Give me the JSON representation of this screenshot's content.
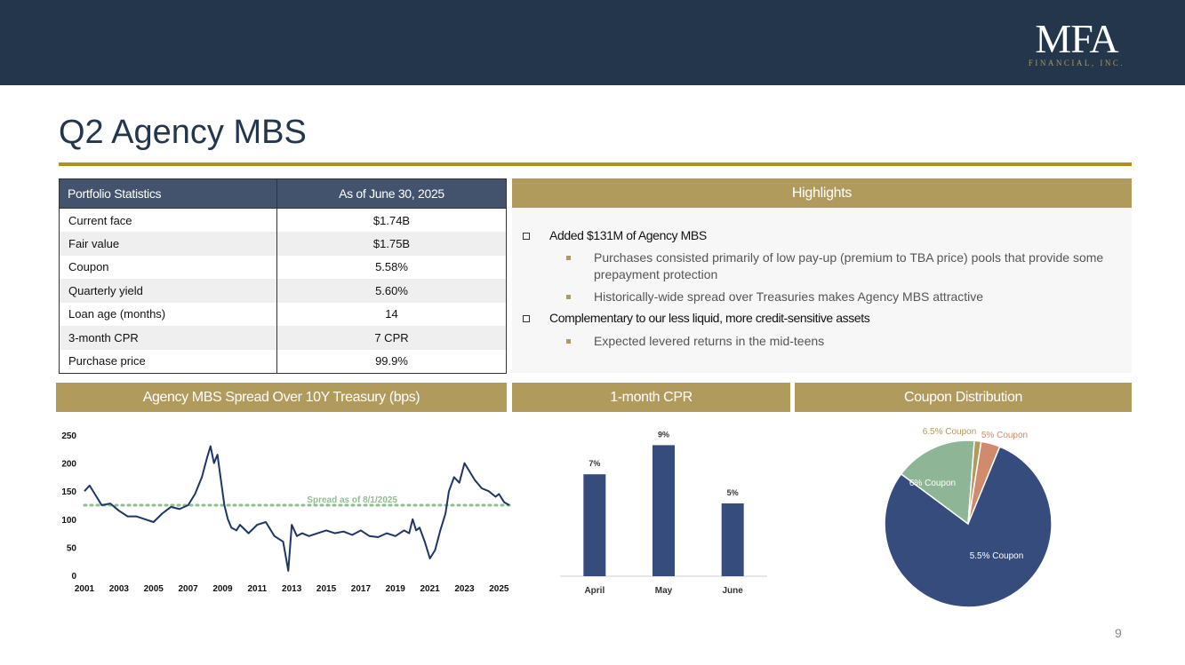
{
  "header": {
    "logo_main": "MFA",
    "logo_sub": "FINANCIAL, INC."
  },
  "title": "Q2 Agency MBS",
  "stats": {
    "col1": "Portfolio Statistics",
    "col2": "As of June 30, 2025",
    "rows": [
      {
        "label": "Current face",
        "value": "$1.74B"
      },
      {
        "label": "Fair value",
        "value": "$1.75B"
      },
      {
        "label": "Coupon",
        "value": "5.58%"
      },
      {
        "label": "Quarterly yield",
        "value": "5.60%"
      },
      {
        "label": "Loan age (months)",
        "value": "14"
      },
      {
        "label": "3-month CPR",
        "value": "7 CPR"
      },
      {
        "label": "Purchase price",
        "value": "99.9%"
      }
    ]
  },
  "highlights": {
    "title": "Highlights",
    "items": [
      {
        "text": "Added $131M of Agency MBS",
        "subs": [
          "Purchases consisted primarily of low pay-up (premium to TBA price) pools that provide some prepayment protection",
          "Historically-wide spread over Treasuries makes Agency MBS attractive"
        ]
      },
      {
        "text": "Complementary to our less liquid, more credit-sensitive assets",
        "subs": [
          "Expected levered returns in the mid-teens"
        ]
      }
    ]
  },
  "sections": {
    "spread": "Agency MBS Spread Over 10Y Treasury (bps)",
    "cpr": "1-month CPR",
    "coupon": "Coupon Distribution"
  },
  "page_number": "9",
  "colors": {
    "navy": "#23364c",
    "gold": "#b09a5c",
    "series": "#1f3566",
    "bar": "#364c7c",
    "ref_line": "#8fbf8f"
  },
  "chart_data": [
    {
      "type": "line",
      "x_ticks": [
        "2001",
        "2003",
        "2005",
        "2007",
        "2009",
        "2011",
        "2013",
        "2015",
        "2017",
        "2019",
        "2021",
        "2023",
        "2025"
      ],
      "y_ticks": [
        "0",
        "50",
        "100",
        "150",
        "200",
        "250"
      ],
      "xlim": [
        2001,
        2025.6
      ],
      "ylim": [
        0,
        250
      ],
      "annotation": "Spread as of 8/1/2025",
      "reference_value": 125,
      "series": [
        {
          "x": [
            2001,
            2001.3,
            2001.7,
            2002,
            2002.5,
            2003,
            2003.5,
            2004,
            2004.5,
            2005,
            2005.5,
            2006,
            2006.5,
            2007,
            2007.4,
            2007.8,
            2008.1,
            2008.3,
            2008.5,
            2008.7,
            2008.9,
            2009.1,
            2009.3,
            2009.5,
            2009.8,
            2010,
            2010.5,
            2011,
            2011.5,
            2012,
            2012.5,
            2012.8,
            2013,
            2013.3,
            2013.6,
            2014,
            2014.5,
            2015,
            2015.5,
            2016,
            2016.5,
            2017,
            2017.5,
            2018,
            2018.5,
            2019,
            2019.5,
            2019.8,
            2020,
            2020.2,
            2020.4,
            2020.7,
            2021,
            2021.3,
            2021.6,
            2021.9,
            2022.1,
            2022.4,
            2022.7,
            2023,
            2023.3,
            2023.6,
            2024,
            2024.4,
            2024.8,
            2025,
            2025.3,
            2025.6
          ],
          "y": [
            150,
            160,
            140,
            125,
            128,
            115,
            105,
            105,
            100,
            95,
            110,
            122,
            118,
            125,
            145,
            175,
            210,
            230,
            200,
            215,
            170,
            125,
            100,
            85,
            80,
            90,
            75,
            90,
            95,
            70,
            60,
            8,
            90,
            70,
            75,
            70,
            75,
            80,
            75,
            78,
            72,
            80,
            70,
            68,
            75,
            70,
            80,
            75,
            100,
            80,
            85,
            60,
            30,
            45,
            80,
            110,
            150,
            175,
            165,
            200,
            185,
            170,
            155,
            150,
            140,
            145,
            130,
            125
          ]
        }
      ]
    },
    {
      "type": "bar",
      "categories": [
        "April",
        "May",
        "June"
      ],
      "values": [
        7,
        9,
        5
      ],
      "labels": [
        "7%",
        "9%",
        "5%"
      ],
      "ylim": [
        0,
        10
      ]
    },
    {
      "type": "pie",
      "slices": [
        {
          "label": "5.5% Coupon",
          "value": 79,
          "color": "#364c7c",
          "label_color": "#ffffff"
        },
        {
          "label": "6% Coupon",
          "value": 16,
          "color": "#8fb597",
          "label_color": "#ffffff"
        },
        {
          "label": "6.5% Coupon",
          "value": 1.3,
          "color": "#b09a5c",
          "label_color": "#b09a5c"
        },
        {
          "label": "5% Coupon",
          "value": 3.7,
          "color": "#d08a6c",
          "label_color": "#d08a6c"
        }
      ]
    }
  ]
}
